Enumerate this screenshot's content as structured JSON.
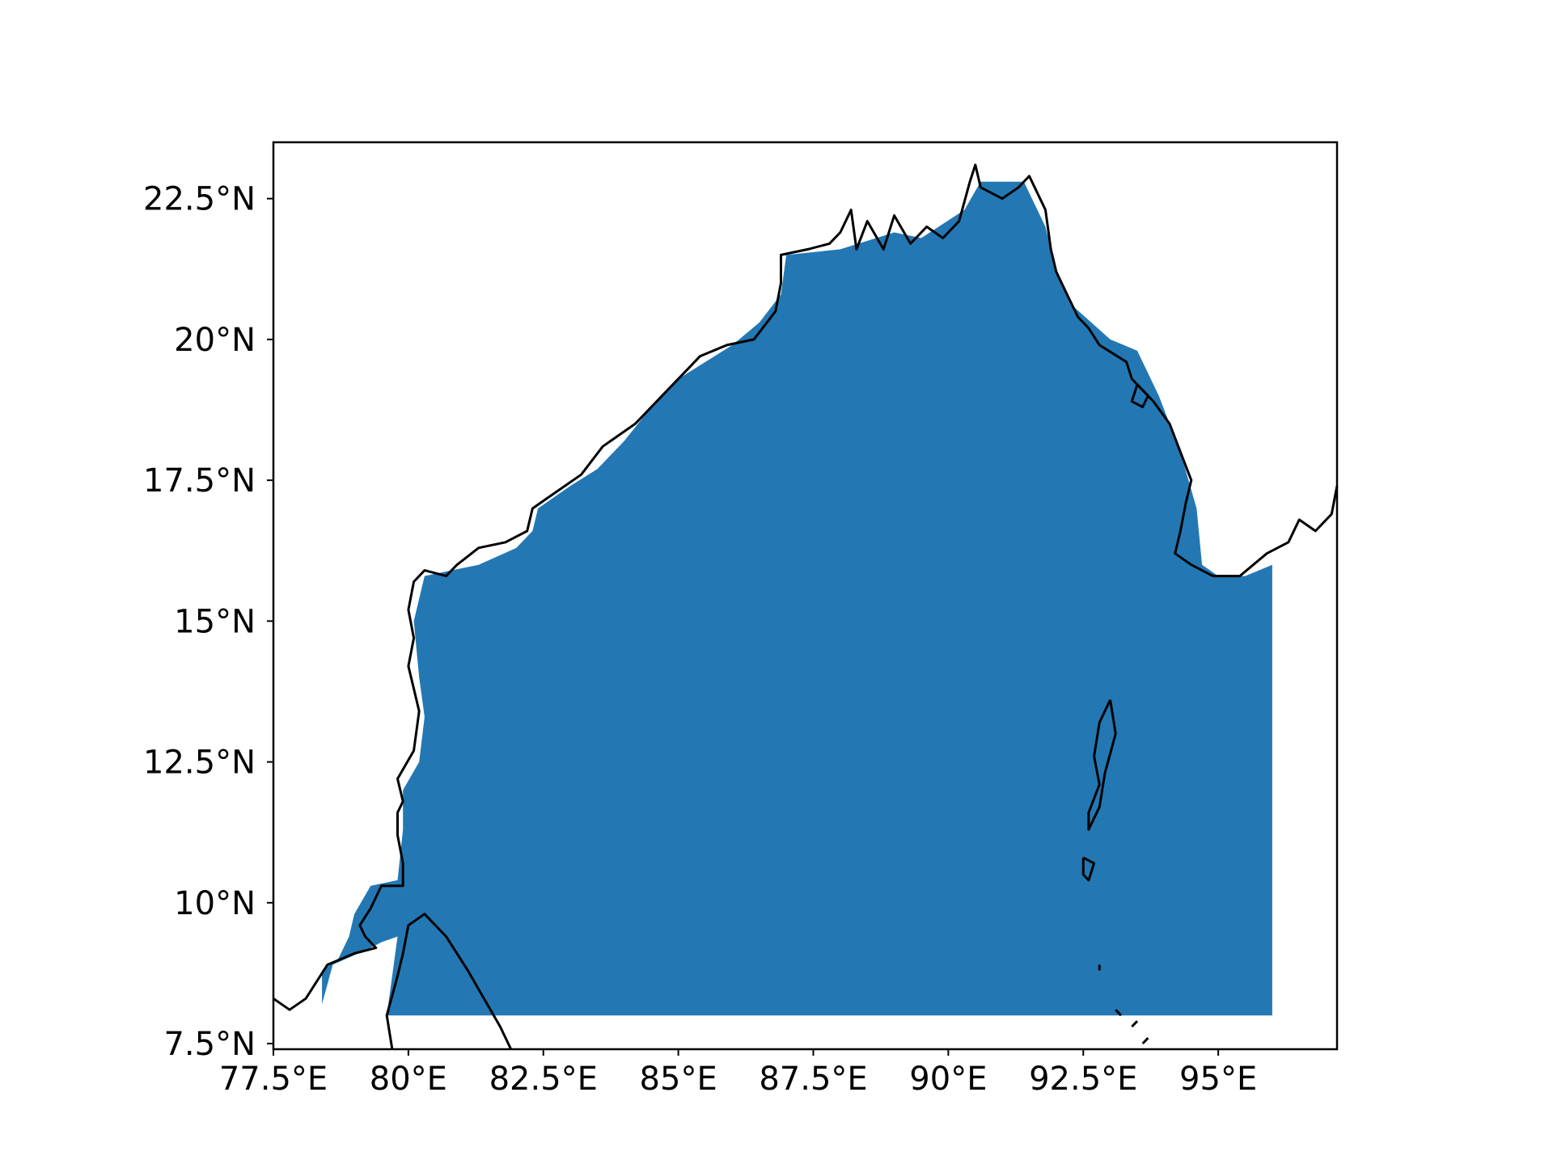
{
  "map": {
    "x_ticks": [
      {
        "label": "77.5°E",
        "lon": 77.5
      },
      {
        "label": "80°E",
        "lon": 80
      },
      {
        "label": "82.5°E",
        "lon": 82.5
      },
      {
        "label": "85°E",
        "lon": 85
      },
      {
        "label": "87.5°E",
        "lon": 87.5
      },
      {
        "label": "90°E",
        "lon": 90
      },
      {
        "label": "92.5°E",
        "lon": 92.5
      },
      {
        "label": "95°E",
        "lon": 95
      }
    ],
    "y_ticks": [
      {
        "label": "22.5°N",
        "lat": 22.5
      },
      {
        "label": "20°N",
        "lat": 20
      },
      {
        "label": "17.5°N",
        "lat": 17.5
      },
      {
        "label": "15°N",
        "lat": 15
      },
      {
        "label": "12.5°N",
        "lat": 12.5
      },
      {
        "label": "10°N",
        "lat": 10
      },
      {
        "label": "7.5°N",
        "lat": 7.5
      }
    ],
    "lon_range": [
      77.5,
      97.2
    ],
    "lat_range": [
      7.4,
      23.5
    ],
    "fill_color": "#2378b4",
    "coast_color": "#000000",
    "sea_region": [
      [
        78.4,
        8.0
      ],
      [
        78.4,
        8.2
      ],
      [
        78.6,
        8.9
      ],
      [
        79.3,
        9.2
      ],
      [
        79.5,
        9.3
      ],
      [
        79.8,
        9.4
      ],
      [
        79.6,
        8.0
      ],
      [
        96.0,
        8.0
      ],
      [
        96.0,
        16.0
      ],
      [
        95.5,
        15.8
      ],
      [
        95.0,
        15.8
      ],
      [
        94.7,
        16.0
      ],
      [
        94.6,
        17.0
      ],
      [
        94.3,
        18.0
      ],
      [
        93.9,
        19.0
      ],
      [
        93.5,
        19.8
      ],
      [
        93.0,
        20.0
      ],
      [
        92.3,
        20.6
      ],
      [
        92.0,
        21.2
      ],
      [
        91.8,
        22.0
      ],
      [
        91.4,
        22.8
      ],
      [
        90.6,
        22.8
      ],
      [
        90.3,
        22.3
      ],
      [
        89.5,
        21.8
      ],
      [
        89.0,
        21.9
      ],
      [
        88.0,
        21.6
      ],
      [
        87.0,
        21.5
      ],
      [
        86.9,
        20.8
      ],
      [
        86.5,
        20.3
      ],
      [
        86.0,
        19.9
      ],
      [
        85.0,
        19.3
      ],
      [
        84.5,
        18.8
      ],
      [
        84.0,
        18.2
      ],
      [
        83.5,
        17.7
      ],
      [
        83.0,
        17.4
      ],
      [
        82.4,
        17.0
      ],
      [
        82.3,
        16.6
      ],
      [
        82.0,
        16.3
      ],
      [
        81.3,
        16.0
      ],
      [
        80.8,
        15.9
      ],
      [
        80.3,
        15.8
      ],
      [
        80.1,
        15.0
      ],
      [
        80.2,
        14.0
      ],
      [
        80.3,
        13.3
      ],
      [
        80.2,
        12.5
      ],
      [
        79.9,
        12.0
      ],
      [
        79.9,
        11.3
      ],
      [
        79.8,
        10.4
      ],
      [
        79.3,
        10.3
      ],
      [
        79.0,
        9.8
      ],
      [
        78.9,
        9.4
      ],
      [
        78.7,
        9.0
      ],
      [
        78.4,
        8.8
      ]
    ],
    "coastlines": [
      [
        [
          77.5,
          8.3
        ],
        [
          77.8,
          8.1
        ],
        [
          78.1,
          8.3
        ],
        [
          78.3,
          8.6
        ],
        [
          78.5,
          8.9
        ],
        [
          79.0,
          9.1
        ],
        [
          79.4,
          9.2
        ],
        [
          79.2,
          9.4
        ],
        [
          79.1,
          9.6
        ],
        [
          79.3,
          9.9
        ],
        [
          79.5,
          10.3
        ],
        [
          79.9,
          10.3
        ],
        [
          79.9,
          10.7
        ],
        [
          79.8,
          11.2
        ],
        [
          79.8,
          11.6
        ],
        [
          79.9,
          11.8
        ],
        [
          79.8,
          12.2
        ],
        [
          80.1,
          12.7
        ],
        [
          80.2,
          13.4
        ],
        [
          80.1,
          13.8
        ],
        [
          80.0,
          14.2
        ],
        [
          80.1,
          14.7
        ],
        [
          80.0,
          15.2
        ],
        [
          80.1,
          15.7
        ],
        [
          80.3,
          15.9
        ],
        [
          80.7,
          15.8
        ],
        [
          80.9,
          16.0
        ],
        [
          81.3,
          16.3
        ],
        [
          81.8,
          16.4
        ],
        [
          82.2,
          16.6
        ],
        [
          82.3,
          17.0
        ],
        [
          82.6,
          17.2
        ],
        [
          83.2,
          17.6
        ],
        [
          83.6,
          18.1
        ],
        [
          84.2,
          18.5
        ],
        [
          84.8,
          19.1
        ],
        [
          85.2,
          19.5
        ],
        [
          85.4,
          19.7
        ],
        [
          85.9,
          19.9
        ],
        [
          86.4,
          20.0
        ],
        [
          86.8,
          20.5
        ],
        [
          86.9,
          21.0
        ],
        [
          86.9,
          21.5
        ],
        [
          87.4,
          21.6
        ],
        [
          87.8,
          21.7
        ],
        [
          88.0,
          21.9
        ],
        [
          88.2,
          22.3
        ],
        [
          88.3,
          21.6
        ],
        [
          88.5,
          22.1
        ],
        [
          88.8,
          21.6
        ],
        [
          89.0,
          22.2
        ],
        [
          89.3,
          21.7
        ],
        [
          89.6,
          22.0
        ],
        [
          89.9,
          21.8
        ],
        [
          90.2,
          22.1
        ],
        [
          90.4,
          22.8
        ],
        [
          90.5,
          23.1
        ],
        [
          90.6,
          22.7
        ],
        [
          91.0,
          22.5
        ],
        [
          91.3,
          22.7
        ],
        [
          91.5,
          22.9
        ],
        [
          91.8,
          22.3
        ],
        [
          91.9,
          21.6
        ],
        [
          92.0,
          21.2
        ],
        [
          92.2,
          20.8
        ],
        [
          92.4,
          20.4
        ],
        [
          92.6,
          20.2
        ],
        [
          92.8,
          19.9
        ],
        [
          93.3,
          19.6
        ],
        [
          93.4,
          19.3
        ],
        [
          93.8,
          18.9
        ],
        [
          94.1,
          18.5
        ],
        [
          94.3,
          18.0
        ],
        [
          94.5,
          17.5
        ],
        [
          94.4,
          17.1
        ],
        [
          94.3,
          16.6
        ],
        [
          94.2,
          16.2
        ],
        [
          94.5,
          16.0
        ],
        [
          94.9,
          15.8
        ],
        [
          95.4,
          15.8
        ],
        [
          95.9,
          16.2
        ],
        [
          96.3,
          16.4
        ],
        [
          96.5,
          16.8
        ],
        [
          96.8,
          16.6
        ],
        [
          97.1,
          16.9
        ],
        [
          97.2,
          17.4
        ]
      ],
      [
        [
          79.7,
          7.4
        ],
        [
          79.6,
          8.0
        ],
        [
          79.8,
          8.7
        ],
        [
          79.9,
          9.1
        ],
        [
          80.0,
          9.6
        ],
        [
          80.3,
          9.8
        ],
        [
          80.7,
          9.4
        ],
        [
          81.1,
          8.8
        ],
        [
          81.4,
          8.3
        ],
        [
          81.7,
          7.8
        ],
        [
          81.9,
          7.4
        ]
      ],
      [
        [
          93.0,
          13.6
        ],
        [
          92.8,
          13.2
        ],
        [
          92.7,
          12.6
        ],
        [
          92.8,
          12.1
        ],
        [
          92.6,
          11.6
        ],
        [
          92.6,
          11.3
        ],
        [
          92.8,
          11.7
        ],
        [
          92.9,
          12.3
        ],
        [
          93.1,
          13.0
        ],
        [
          93.0,
          13.6
        ]
      ],
      [
        [
          92.5,
          10.8
        ],
        [
          92.7,
          10.7
        ],
        [
          92.6,
          10.4
        ],
        [
          92.5,
          10.5
        ],
        [
          92.5,
          10.8
        ]
      ],
      [
        [
          93.5,
          19.2
        ],
        [
          93.7,
          19.0
        ],
        [
          93.6,
          18.8
        ],
        [
          93.4,
          18.9
        ],
        [
          93.5,
          19.2
        ]
      ],
      [
        [
          92.8,
          8.9
        ],
        [
          92.8,
          8.8
        ]
      ],
      [
        [
          93.1,
          8.1
        ],
        [
          93.2,
          8.0
        ]
      ],
      [
        [
          93.4,
          7.8
        ],
        [
          93.5,
          7.9
        ]
      ],
      [
        [
          93.6,
          7.5
        ],
        [
          93.7,
          7.6
        ]
      ]
    ]
  }
}
